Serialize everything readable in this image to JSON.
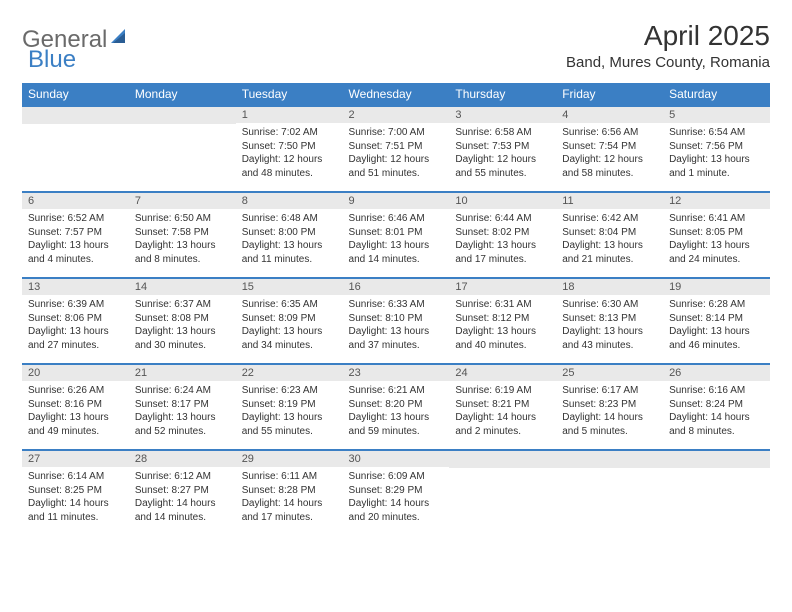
{
  "logo": {
    "general": "General",
    "blue": "Blue"
  },
  "title": "April 2025",
  "location": "Band, Mures County, Romania",
  "day_headers": [
    "Sunday",
    "Monday",
    "Tuesday",
    "Wednesday",
    "Thursday",
    "Friday",
    "Saturday"
  ],
  "colors": {
    "header_bg": "#3b7fc4",
    "header_text": "#ffffff",
    "daynum_bg": "#e9e9e9",
    "border": "#3b7fc4",
    "logo_gray": "#6a6a6a",
    "logo_blue": "#3b7fc4",
    "body_text": "#333333"
  },
  "fonts": {
    "title_size": 28,
    "location_size": 15,
    "header_size": 12,
    "daynum_size": 11,
    "detail_size": 10
  },
  "weeks": [
    [
      {
        "day": "",
        "sunrise": "",
        "sunset": "",
        "daylight": ""
      },
      {
        "day": "",
        "sunrise": "",
        "sunset": "",
        "daylight": ""
      },
      {
        "day": "1",
        "sunrise": "Sunrise: 7:02 AM",
        "sunset": "Sunset: 7:50 PM",
        "daylight": "Daylight: 12 hours and 48 minutes."
      },
      {
        "day": "2",
        "sunrise": "Sunrise: 7:00 AM",
        "sunset": "Sunset: 7:51 PM",
        "daylight": "Daylight: 12 hours and 51 minutes."
      },
      {
        "day": "3",
        "sunrise": "Sunrise: 6:58 AM",
        "sunset": "Sunset: 7:53 PM",
        "daylight": "Daylight: 12 hours and 55 minutes."
      },
      {
        "day": "4",
        "sunrise": "Sunrise: 6:56 AM",
        "sunset": "Sunset: 7:54 PM",
        "daylight": "Daylight: 12 hours and 58 minutes."
      },
      {
        "day": "5",
        "sunrise": "Sunrise: 6:54 AM",
        "sunset": "Sunset: 7:56 PM",
        "daylight": "Daylight: 13 hours and 1 minute."
      }
    ],
    [
      {
        "day": "6",
        "sunrise": "Sunrise: 6:52 AM",
        "sunset": "Sunset: 7:57 PM",
        "daylight": "Daylight: 13 hours and 4 minutes."
      },
      {
        "day": "7",
        "sunrise": "Sunrise: 6:50 AM",
        "sunset": "Sunset: 7:58 PM",
        "daylight": "Daylight: 13 hours and 8 minutes."
      },
      {
        "day": "8",
        "sunrise": "Sunrise: 6:48 AM",
        "sunset": "Sunset: 8:00 PM",
        "daylight": "Daylight: 13 hours and 11 minutes."
      },
      {
        "day": "9",
        "sunrise": "Sunrise: 6:46 AM",
        "sunset": "Sunset: 8:01 PM",
        "daylight": "Daylight: 13 hours and 14 minutes."
      },
      {
        "day": "10",
        "sunrise": "Sunrise: 6:44 AM",
        "sunset": "Sunset: 8:02 PM",
        "daylight": "Daylight: 13 hours and 17 minutes."
      },
      {
        "day": "11",
        "sunrise": "Sunrise: 6:42 AM",
        "sunset": "Sunset: 8:04 PM",
        "daylight": "Daylight: 13 hours and 21 minutes."
      },
      {
        "day": "12",
        "sunrise": "Sunrise: 6:41 AM",
        "sunset": "Sunset: 8:05 PM",
        "daylight": "Daylight: 13 hours and 24 minutes."
      }
    ],
    [
      {
        "day": "13",
        "sunrise": "Sunrise: 6:39 AM",
        "sunset": "Sunset: 8:06 PM",
        "daylight": "Daylight: 13 hours and 27 minutes."
      },
      {
        "day": "14",
        "sunrise": "Sunrise: 6:37 AM",
        "sunset": "Sunset: 8:08 PM",
        "daylight": "Daylight: 13 hours and 30 minutes."
      },
      {
        "day": "15",
        "sunrise": "Sunrise: 6:35 AM",
        "sunset": "Sunset: 8:09 PM",
        "daylight": "Daylight: 13 hours and 34 minutes."
      },
      {
        "day": "16",
        "sunrise": "Sunrise: 6:33 AM",
        "sunset": "Sunset: 8:10 PM",
        "daylight": "Daylight: 13 hours and 37 minutes."
      },
      {
        "day": "17",
        "sunrise": "Sunrise: 6:31 AM",
        "sunset": "Sunset: 8:12 PM",
        "daylight": "Daylight: 13 hours and 40 minutes."
      },
      {
        "day": "18",
        "sunrise": "Sunrise: 6:30 AM",
        "sunset": "Sunset: 8:13 PM",
        "daylight": "Daylight: 13 hours and 43 minutes."
      },
      {
        "day": "19",
        "sunrise": "Sunrise: 6:28 AM",
        "sunset": "Sunset: 8:14 PM",
        "daylight": "Daylight: 13 hours and 46 minutes."
      }
    ],
    [
      {
        "day": "20",
        "sunrise": "Sunrise: 6:26 AM",
        "sunset": "Sunset: 8:16 PM",
        "daylight": "Daylight: 13 hours and 49 minutes."
      },
      {
        "day": "21",
        "sunrise": "Sunrise: 6:24 AM",
        "sunset": "Sunset: 8:17 PM",
        "daylight": "Daylight: 13 hours and 52 minutes."
      },
      {
        "day": "22",
        "sunrise": "Sunrise: 6:23 AM",
        "sunset": "Sunset: 8:19 PM",
        "daylight": "Daylight: 13 hours and 55 minutes."
      },
      {
        "day": "23",
        "sunrise": "Sunrise: 6:21 AM",
        "sunset": "Sunset: 8:20 PM",
        "daylight": "Daylight: 13 hours and 59 minutes."
      },
      {
        "day": "24",
        "sunrise": "Sunrise: 6:19 AM",
        "sunset": "Sunset: 8:21 PM",
        "daylight": "Daylight: 14 hours and 2 minutes."
      },
      {
        "day": "25",
        "sunrise": "Sunrise: 6:17 AM",
        "sunset": "Sunset: 8:23 PM",
        "daylight": "Daylight: 14 hours and 5 minutes."
      },
      {
        "day": "26",
        "sunrise": "Sunrise: 6:16 AM",
        "sunset": "Sunset: 8:24 PM",
        "daylight": "Daylight: 14 hours and 8 minutes."
      }
    ],
    [
      {
        "day": "27",
        "sunrise": "Sunrise: 6:14 AM",
        "sunset": "Sunset: 8:25 PM",
        "daylight": "Daylight: 14 hours and 11 minutes."
      },
      {
        "day": "28",
        "sunrise": "Sunrise: 6:12 AM",
        "sunset": "Sunset: 8:27 PM",
        "daylight": "Daylight: 14 hours and 14 minutes."
      },
      {
        "day": "29",
        "sunrise": "Sunrise: 6:11 AM",
        "sunset": "Sunset: 8:28 PM",
        "daylight": "Daylight: 14 hours and 17 minutes."
      },
      {
        "day": "30",
        "sunrise": "Sunrise: 6:09 AM",
        "sunset": "Sunset: 8:29 PM",
        "daylight": "Daylight: 14 hours and 20 minutes."
      },
      {
        "day": "",
        "sunrise": "",
        "sunset": "",
        "daylight": ""
      },
      {
        "day": "",
        "sunrise": "",
        "sunset": "",
        "daylight": ""
      },
      {
        "day": "",
        "sunrise": "",
        "sunset": "",
        "daylight": ""
      }
    ]
  ]
}
